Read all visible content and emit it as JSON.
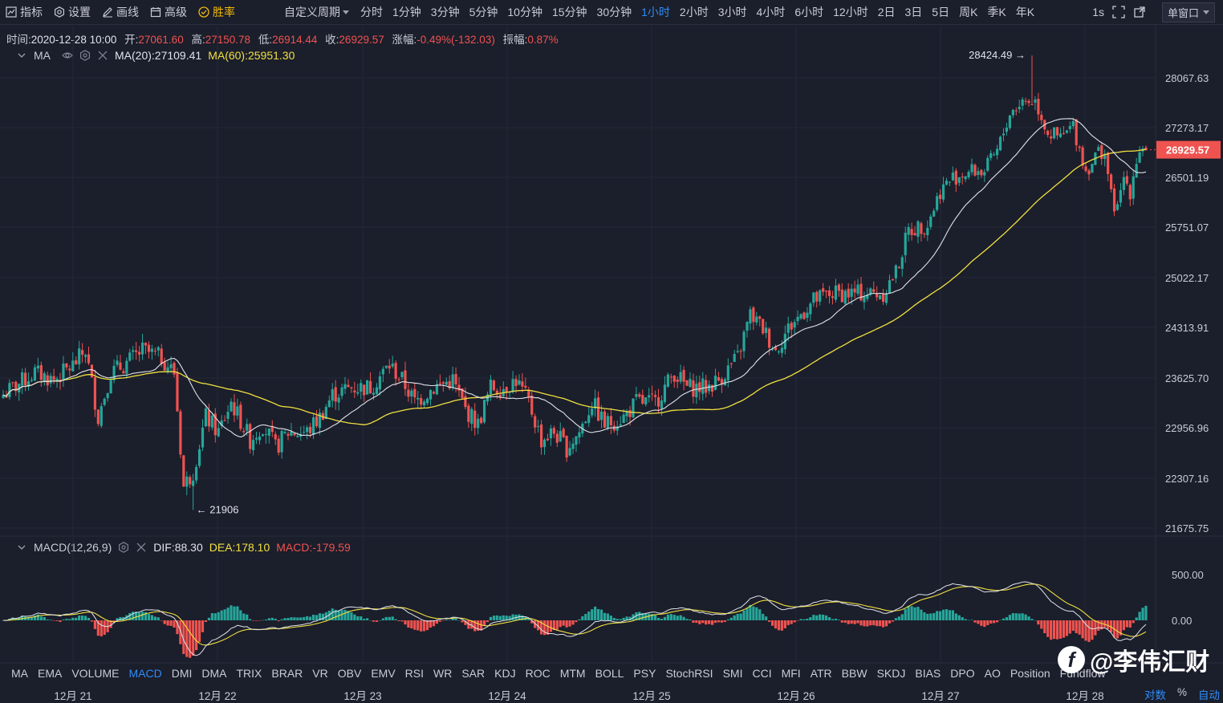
{
  "toolbar": {
    "items": [
      {
        "label": "指标",
        "icon": "indicator-icon"
      },
      {
        "label": "设置",
        "icon": "gear-icon"
      },
      {
        "label": "画线",
        "icon": "pencil-icon"
      },
      {
        "label": "高级",
        "icon": "calendar-icon"
      },
      {
        "label": "胜率",
        "icon": "win-rate-icon"
      }
    ],
    "custom_period": "自定义周期",
    "periods": [
      "分时",
      "1分钟",
      "3分钟",
      "5分钟",
      "10分钟",
      "15分钟",
      "30分钟",
      "1小时",
      "2小时",
      "3小时",
      "4小时",
      "6小时",
      "12小时",
      "2日",
      "3日",
      "5日",
      "周K",
      "季K",
      "年K"
    ],
    "active_period": "1小时",
    "interval": "1s",
    "window_mode": "单窗口"
  },
  "ohlc": {
    "time_label": "时间:",
    "time": "2020-12-28 10:00",
    "open_label": "开:",
    "open": "27061.60",
    "high_label": "高:",
    "high": "27150.78",
    "low_label": "低:",
    "low": "26914.44",
    "close_label": "收:",
    "close": "26929.57",
    "change_label": "涨幅:",
    "change": "-0.49%(-132.03)",
    "amplitude_label": "振幅:",
    "amplitude": "0.87%"
  },
  "ma_legend": {
    "name": "MA",
    "ma20": "MA(20):27109.41",
    "ma60": "MA(60):25951.30"
  },
  "macd_legend": {
    "name": "MACD(12,26,9)",
    "dif": "DIF:88.30",
    "dea": "DEA:178.10",
    "macd": "MACD:-179.59"
  },
  "price_axis": [
    "28067.63",
    "27273.17",
    "26501.19",
    "25751.07",
    "25022.17",
    "24313.91",
    "23625.70",
    "22956.96",
    "22307.16",
    "21675.75"
  ],
  "macd_axis": [
    "500.00",
    "0.00"
  ],
  "current_price": "26929.57",
  "annotations": {
    "high": "28424.49 →",
    "low": "← 21906"
  },
  "colors": {
    "up": "#26a69a",
    "down": "#ef5350",
    "ma20": "#e0e3ea",
    "ma60": "#f0e040",
    "accent": "#2f8cf5",
    "background": "#1b1e2b"
  },
  "indicators": [
    "MA",
    "EMA",
    "VOLUME",
    "MACD",
    "DMI",
    "DMA",
    "TRIX",
    "BRAR",
    "VR",
    "OBV",
    "EMV",
    "RSI",
    "WR",
    "SAR",
    "KDJ",
    "ROC",
    "MTM",
    "BOLL",
    "PSY",
    "StochRSI",
    "SMI",
    "CCI",
    "MFI",
    "ATR",
    "BBW",
    "SKDJ",
    "BIAS",
    "DPO",
    "AO",
    "Position",
    "Fundflow"
  ],
  "active_indicator": "MACD",
  "dates": [
    "12月 21",
    "12月 22",
    "12月 23",
    "12月 24",
    "12月 25",
    "12月 26",
    "12月 27",
    "12月 28"
  ],
  "bottom_controls": [
    "对数",
    "%",
    "自动"
  ],
  "watermark": "@李伟汇财",
  "chart_data": {
    "type": "candlestick",
    "interval": "1h",
    "y_ticks": [
      28067.63,
      27273.17,
      26501.19,
      25751.07,
      25022.17,
      24313.91,
      23625.7,
      22956.96,
      22307.16,
      21675.75
    ],
    "anchors": [
      {
        "i": 0,
        "c": 23400
      },
      {
        "i": 10,
        "c": 23700
      },
      {
        "i": 16,
        "c": 23600
      },
      {
        "i": 22,
        "c": 23800
      },
      {
        "i": 26,
        "c": 24000
      },
      {
        "i": 30,
        "c": 23100
      },
      {
        "i": 34,
        "c": 23700
      },
      {
        "i": 38,
        "c": 23800
      },
      {
        "i": 44,
        "c": 24000
      },
      {
        "i": 50,
        "c": 23900
      },
      {
        "i": 54,
        "c": 23700
      },
      {
        "i": 57,
        "c": 22200
      },
      {
        "i": 60,
        "c": 22400
      },
      {
        "i": 64,
        "c": 23100
      },
      {
        "i": 68,
        "c": 22900
      },
      {
        "i": 72,
        "c": 23300
      },
      {
        "i": 78,
        "c": 22800
      },
      {
        "i": 82,
        "c": 23000
      },
      {
        "i": 86,
        "c": 22700
      },
      {
        "i": 90,
        "c": 22900
      },
      {
        "i": 96,
        "c": 22900
      },
      {
        "i": 100,
        "c": 23100
      },
      {
        "i": 104,
        "c": 23400
      },
      {
        "i": 110,
        "c": 23500
      },
      {
        "i": 116,
        "c": 23500
      },
      {
        "i": 122,
        "c": 23800
      },
      {
        "i": 126,
        "c": 23600
      },
      {
        "i": 130,
        "c": 23300
      },
      {
        "i": 136,
        "c": 23500
      },
      {
        "i": 142,
        "c": 23600
      },
      {
        "i": 146,
        "c": 23200
      },
      {
        "i": 150,
        "c": 23000
      },
      {
        "i": 154,
        "c": 23500
      },
      {
        "i": 158,
        "c": 23500
      },
      {
        "i": 162,
        "c": 23600
      },
      {
        "i": 166,
        "c": 23300
      },
      {
        "i": 170,
        "c": 22800
      },
      {
        "i": 174,
        "c": 22900
      },
      {
        "i": 178,
        "c": 22700
      },
      {
        "i": 182,
        "c": 22900
      },
      {
        "i": 186,
        "c": 23300
      },
      {
        "i": 190,
        "c": 23000
      },
      {
        "i": 196,
        "c": 23100
      },
      {
        "i": 200,
        "c": 23300
      },
      {
        "i": 206,
        "c": 23300
      },
      {
        "i": 212,
        "c": 23700
      },
      {
        "i": 216,
        "c": 23500
      },
      {
        "i": 222,
        "c": 23500
      },
      {
        "i": 226,
        "c": 23600
      },
      {
        "i": 232,
        "c": 23900
      },
      {
        "i": 236,
        "c": 24500
      },
      {
        "i": 240,
        "c": 24300
      },
      {
        "i": 244,
        "c": 24000
      },
      {
        "i": 248,
        "c": 24300
      },
      {
        "i": 252,
        "c": 24500
      },
      {
        "i": 256,
        "c": 24700
      },
      {
        "i": 262,
        "c": 24800
      },
      {
        "i": 266,
        "c": 24800
      },
      {
        "i": 272,
        "c": 24800
      },
      {
        "i": 278,
        "c": 24800
      },
      {
        "i": 282,
        "c": 25100
      },
      {
        "i": 286,
        "c": 25700
      },
      {
        "i": 292,
        "c": 25800
      },
      {
        "i": 296,
        "c": 26300
      },
      {
        "i": 300,
        "c": 26500
      },
      {
        "i": 306,
        "c": 26600
      },
      {
        "i": 310,
        "c": 26600
      },
      {
        "i": 314,
        "c": 26900
      },
      {
        "i": 318,
        "c": 27500
      },
      {
        "i": 322,
        "c": 27700
      },
      {
        "i": 326,
        "c": 27700
      },
      {
        "i": 330,
        "c": 27200
      },
      {
        "i": 334,
        "c": 27100
      },
      {
        "i": 338,
        "c": 27300
      },
      {
        "i": 342,
        "c": 26600
      },
      {
        "i": 346,
        "c": 26900
      },
      {
        "i": 348,
        "c": 26900
      },
      {
        "i": 350,
        "c": 26200
      },
      {
        "i": 352,
        "c": 26000
      },
      {
        "i": 354,
        "c": 26500
      },
      {
        "i": 356,
        "c": 26300
      },
      {
        "i": 358,
        "c": 26800
      },
      {
        "i": 360,
        "c": 27000
      },
      {
        "i": 361,
        "c": 26929.57
      }
    ]
  }
}
